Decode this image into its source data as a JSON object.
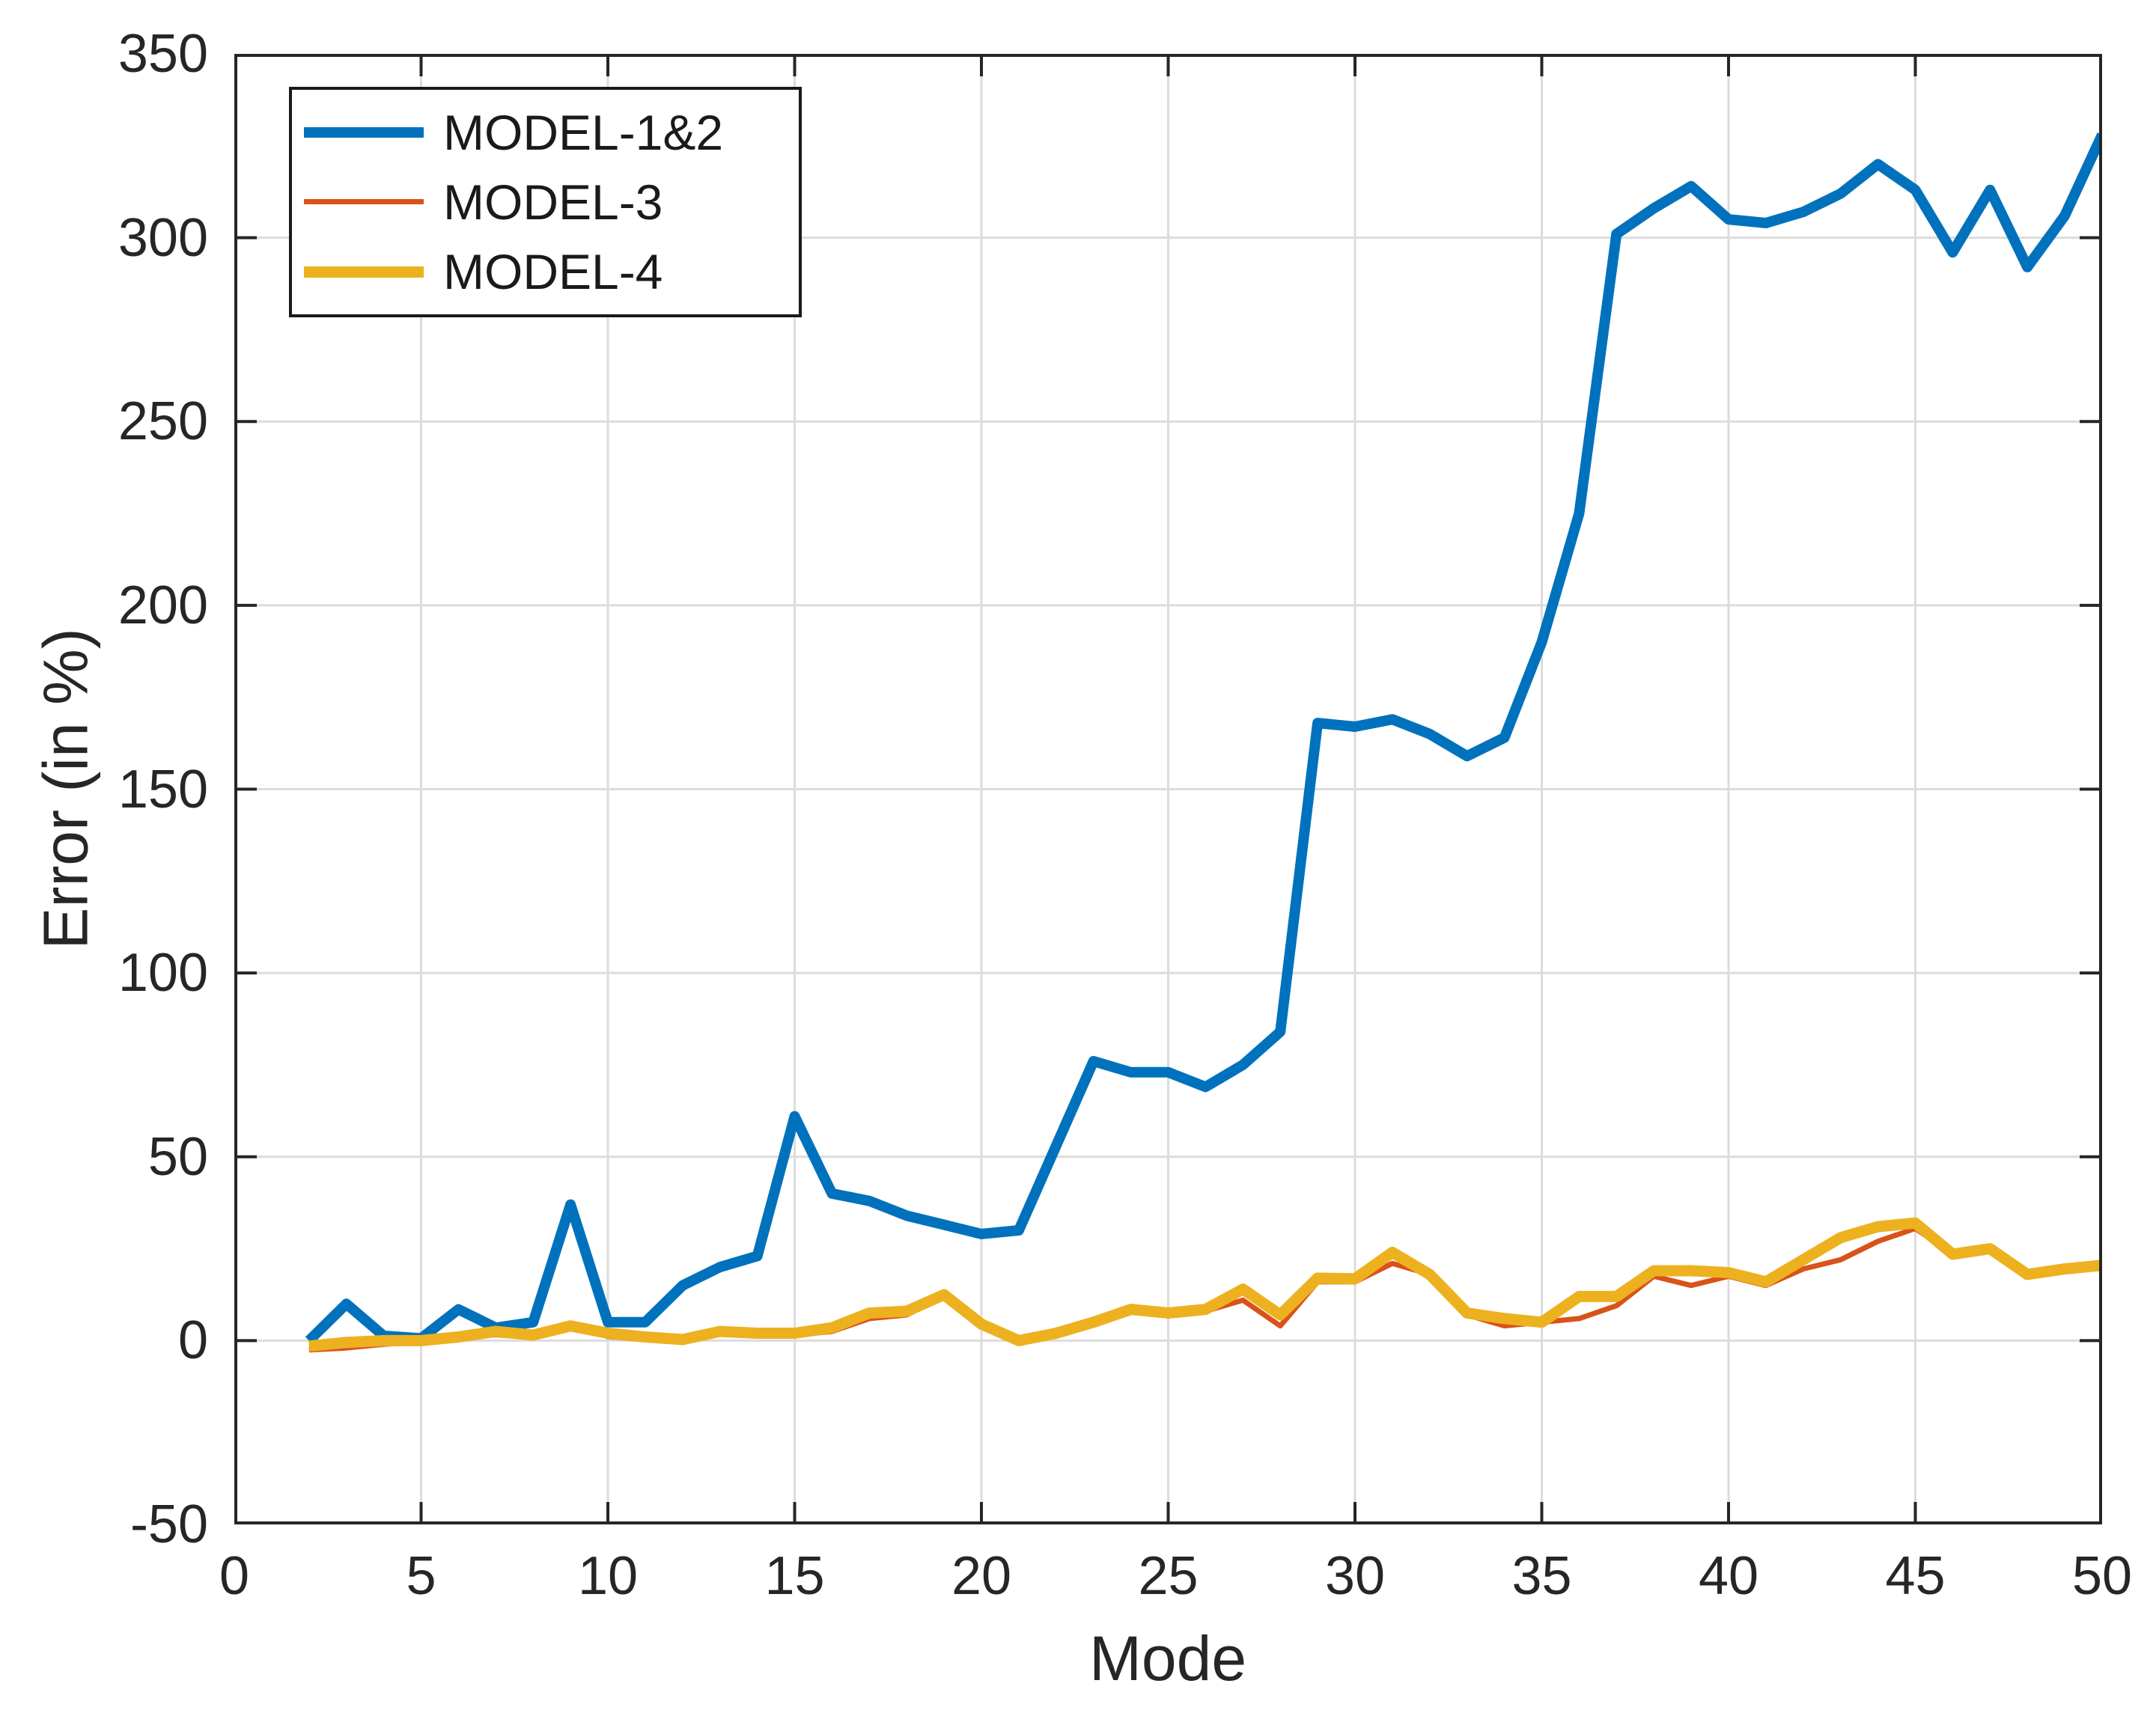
{
  "figure": {
    "background": "#ffffff",
    "axis_color": "#262626",
    "grid_color": "#DCDCDC",
    "tick_length": 30,
    "spine_width": 4
  },
  "chart_data": {
    "type": "line",
    "title": "",
    "xlabel": "Mode",
    "ylabel": "Error (in %)",
    "xlim": [
      0,
      50
    ],
    "ylim": [
      -50,
      350
    ],
    "xticks": [
      0,
      5,
      10,
      15,
      20,
      25,
      30,
      35,
      40,
      45,
      50
    ],
    "yticks": [
      -50,
      0,
      50,
      100,
      150,
      200,
      250,
      300,
      350
    ],
    "grid": true,
    "legend_position": "top-left",
    "x": [
      2,
      3,
      4,
      5,
      6,
      7,
      8,
      9,
      10,
      11,
      12,
      13,
      14,
      15,
      16,
      17,
      18,
      19,
      20,
      21,
      22,
      23,
      24,
      25,
      26,
      27,
      28,
      29,
      30,
      31,
      32,
      33,
      34,
      35,
      36,
      37,
      38,
      39,
      40,
      41,
      42,
      43,
      44,
      45,
      46,
      47,
      48,
      49,
      50
    ],
    "series": [
      {
        "name": "MODEL-1&2",
        "color": "#0072BD",
        "width": 14,
        "values": [
          0,
          10,
          1.3,
          0.6,
          8.5,
          3.5,
          5,
          37,
          5,
          5,
          15,
          20,
          23,
          61,
          40,
          38,
          34,
          31.5,
          29,
          30,
          53,
          76,
          73,
          73,
          69,
          75,
          84,
          168,
          167,
          169,
          165,
          159,
          164,
          190,
          225,
          301,
          308,
          314,
          305,
          304,
          307,
          312,
          320,
          313,
          296,
          313,
          292,
          306,
          328
        ]
      },
      {
        "name": "MODEL-3",
        "color": "#D95319",
        "width": 7,
        "values": [
          -2.5,
          -2,
          -1,
          -0.3,
          0.8,
          1.6,
          0.8,
          4.8,
          1.1,
          0.3,
          0,
          2,
          1.5,
          1.5,
          2.5,
          6,
          7,
          12,
          4,
          -0.5,
          1.8,
          4.8,
          8,
          7,
          8,
          11,
          4,
          16,
          16,
          21,
          18,
          7,
          4,
          5,
          6,
          9.5,
          17.5,
          15,
          17.5,
          15,
          19.5,
          22,
          27,
          30.5,
          23.5,
          25,
          17.5,
          19.5,
          20.5
        ]
      },
      {
        "name": "MODEL-4",
        "color": "#EDB120",
        "width": 15,
        "values": [
          -1.5,
          -0.5,
          0,
          0,
          1,
          2.5,
          1.5,
          4,
          2,
          1,
          0.3,
          2.5,
          2,
          2,
          3.5,
          7.5,
          8,
          12.5,
          4.5,
          0,
          2,
          5,
          8.5,
          7.5,
          8.5,
          14,
          7,
          17,
          16.8,
          24,
          18,
          7.5,
          6,
          5,
          12,
          12,
          19,
          19,
          18.5,
          16,
          22,
          28,
          31,
          32,
          23.5,
          25,
          18,
          19.5,
          20.5
        ]
      }
    ]
  }
}
